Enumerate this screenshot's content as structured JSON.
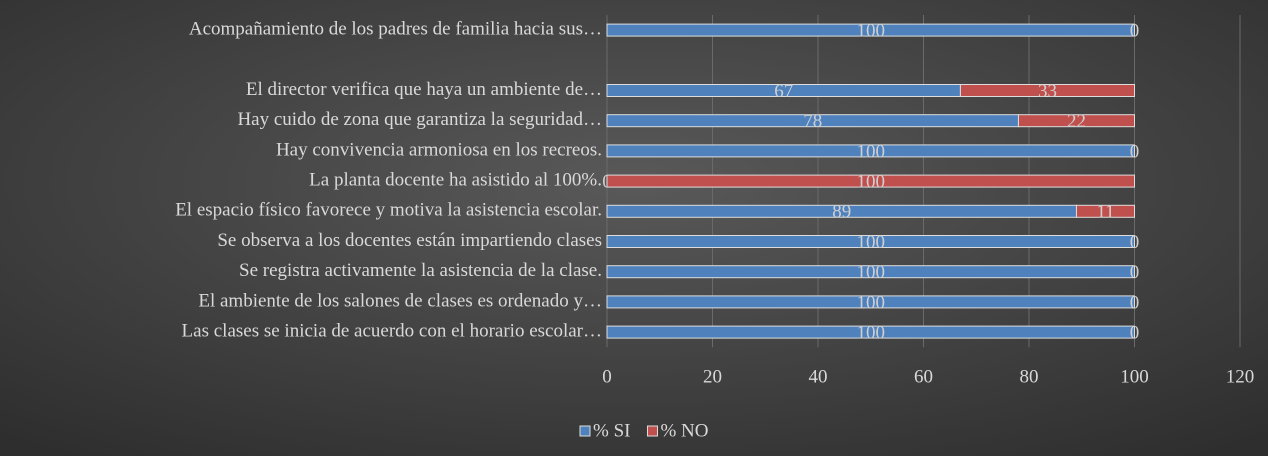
{
  "chart_data": {
    "type": "stacked-bar-horizontal",
    "categories": [
      "Acompañamiento de los padres de familia hacia sus…",
      null,
      "El director verifica que haya un ambiente de…",
      "Hay cuido de zona que garantiza la seguridad…",
      "Hay convivencia armoniosa en los recreos.",
      "La planta docente ha asistido al 100%.",
      "El espacio físico favorece y motiva la asistencia escolar.",
      "Se observa a los docentes están impartiendo clases",
      "Se registra activamente la asistencia de la clase.",
      "El ambiente de los salones de clases es ordenado y…",
      "Las clases se inicia de acuerdo con el horario escolar…"
    ],
    "series": [
      {
        "name": "% SI",
        "color": "#4f81bd",
        "values": [
          100,
          null,
          67,
          78,
          100,
          0,
          89,
          100,
          100,
          100,
          100
        ]
      },
      {
        "name": "% NO",
        "color": "#c0504d",
        "values": [
          0,
          null,
          33,
          22,
          0,
          100,
          11,
          0,
          0,
          0,
          0
        ]
      }
    ],
    "xlim": [
      0,
      120
    ],
    "xticks": [
      0,
      20,
      40,
      60,
      80,
      100,
      120
    ],
    "grid": true,
    "legend": "bottom"
  }
}
